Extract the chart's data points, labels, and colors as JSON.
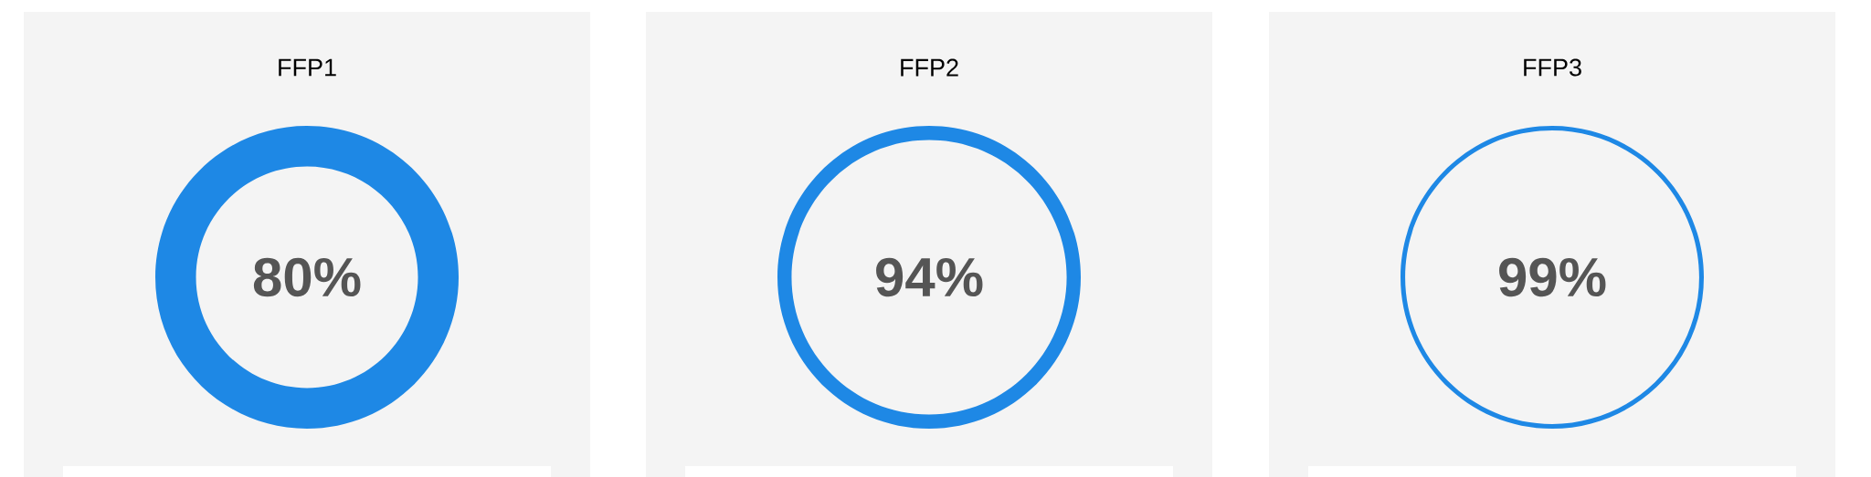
{
  "chart_data": [
    {
      "type": "other",
      "title": "FFP1",
      "values": [
        80
      ],
      "value_labels": [
        "80%"
      ],
      "color": "#1e88e5"
    },
    {
      "type": "other",
      "title": "FFP2",
      "values": [
        94
      ],
      "value_labels": [
        "94%"
      ],
      "color": "#1e88e5"
    },
    {
      "type": "other",
      "title": "FFP3",
      "values": [
        99
      ],
      "value_labels": [
        "99%"
      ],
      "color": "#1e88e5"
    }
  ]
}
